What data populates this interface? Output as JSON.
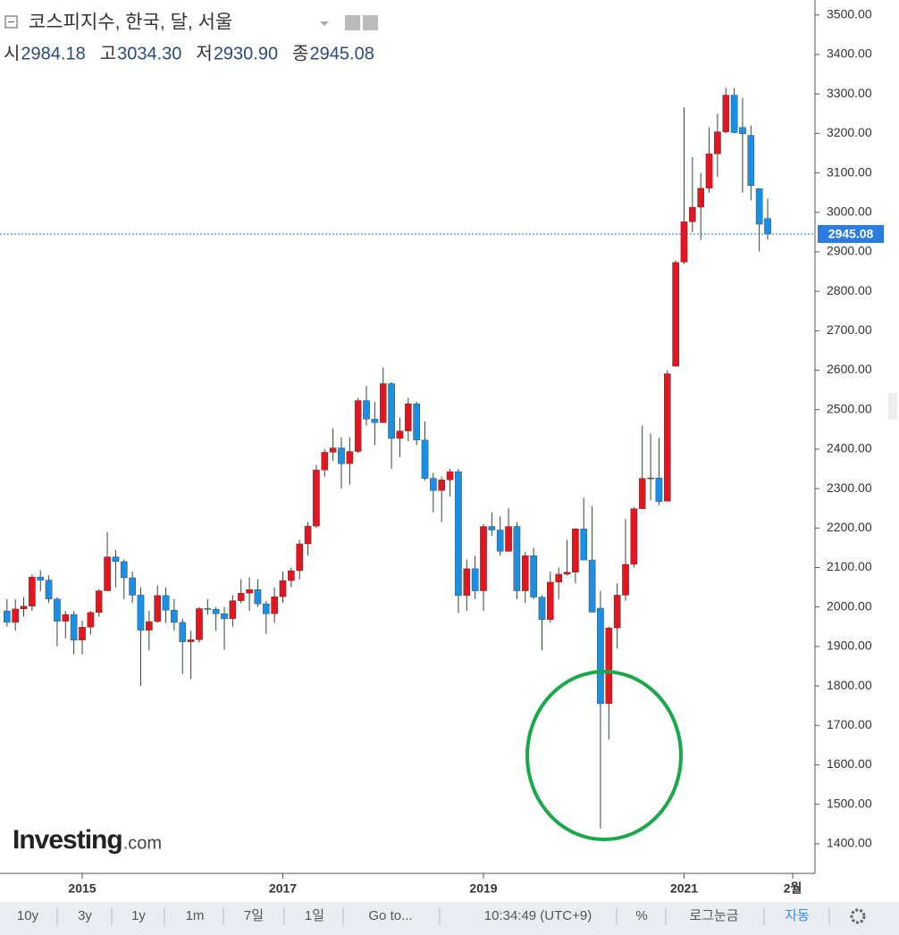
{
  "chart_data": {
    "type": "candlestick",
    "title": "코스피지수, 한국, 달, 서울",
    "header_labels": [
      "시",
      "고",
      "저",
      "종"
    ],
    "value_labels": [
      "2984.18",
      "3034.30",
      "2930.90",
      "2945.08"
    ],
    "up_color": "#e3151f",
    "down_color": "#1b8fe3",
    "x": [
      "2014-04",
      "2014-05",
      "2014-06",
      "2014-07",
      "2014-08",
      "2014-09",
      "2014-10",
      "2014-11",
      "2014-12",
      "2015-01",
      "2015-02",
      "2015-03",
      "2015-04",
      "2015-05",
      "2015-06",
      "2015-07",
      "2015-08",
      "2015-09",
      "2015-10",
      "2015-11",
      "2015-12",
      "2016-01",
      "2016-02",
      "2016-03",
      "2016-04",
      "2016-05",
      "2016-06",
      "2016-07",
      "2016-08",
      "2016-09",
      "2016-10",
      "2016-11",
      "2016-12",
      "2017-01",
      "2017-02",
      "2017-03",
      "2017-04",
      "2017-05",
      "2017-06",
      "2017-07",
      "2017-08",
      "2017-09",
      "2017-10",
      "2017-11",
      "2017-12",
      "2018-01",
      "2018-02",
      "2018-03",
      "2018-04",
      "2018-05",
      "2018-06",
      "2018-07",
      "2018-08",
      "2018-09",
      "2018-10",
      "2018-11",
      "2018-12",
      "2019-01",
      "2019-02",
      "2019-03",
      "2019-04",
      "2019-05",
      "2019-06",
      "2019-07",
      "2019-08",
      "2019-09",
      "2019-10",
      "2019-11",
      "2019-12",
      "2020-01",
      "2020-02",
      "2020-03",
      "2020-04",
      "2020-05",
      "2020-06",
      "2020-07",
      "2020-08",
      "2020-09",
      "2020-10",
      "2020-11",
      "2020-12",
      "2021-01",
      "2021-02",
      "2021-03",
      "2021-04",
      "2021-05",
      "2021-06",
      "2021-07",
      "2021-08",
      "2021-09",
      "2021-10",
      "2021-11"
    ],
    "open": [
      1990,
      1961,
      1995,
      2002,
      2076,
      2068,
      2020,
      1964,
      1981,
      1916,
      1949,
      1986,
      2041,
      2127,
      2115,
      2074,
      2030,
      1941,
      1963,
      2029,
      1992,
      1961,
      1912,
      1917,
      1996,
      1994,
      1983,
      1970,
      2016,
      2035,
      2044,
      2008,
      1983,
      2026,
      2067,
      2092,
      2160,
      2205,
      2347,
      2392,
      2403,
      2363,
      2394,
      2523,
      2476,
      2467,
      2566,
      2427,
      2446,
      2515,
      2423,
      2326,
      2295,
      2322,
      2343,
      2029,
      2097,
      2041,
      2204,
      2195,
      2141,
      2204,
      2041,
      2130,
      2025,
      1968,
      2063,
      2083,
      2088,
      2198,
      2119,
      1997,
      1755,
      1947,
      2030,
      2108,
      2249,
      2326,
      2327,
      2268,
      2610,
      2874,
      2976,
      3013,
      3061,
      3148,
      3204,
      3297,
      3215,
      3195,
      3060,
      2984.18
    ],
    "high": [
      2020,
      2020,
      2025,
      2082,
      2093,
      2080,
      2025,
      1990,
      1990,
      1965,
      1990,
      2045,
      2190,
      2145,
      2120,
      2090,
      2050,
      1990,
      2055,
      2050,
      2020,
      1970,
      1940,
      2000,
      2020,
      2000,
      2000,
      2030,
      2070,
      2075,
      2070,
      2015,
      2050,
      2090,
      2100,
      2170,
      2215,
      2360,
      2400,
      2453,
      2430,
      2430,
      2530,
      2560,
      2520,
      2607,
      2570,
      2480,
      2530,
      2520,
      2470,
      2340,
      2330,
      2350,
      2350,
      2120,
      2130,
      2210,
      2240,
      2230,
      2250,
      2215,
      2140,
      2150,
      2030,
      2090,
      2100,
      2170,
      2200,
      2277,
      2255,
      2041,
      1950,
      2060,
      2223,
      2254,
      2460,
      2440,
      2428,
      2600,
      2878,
      3266,
      3140,
      3100,
      3215,
      3250,
      3316,
      3315,
      3290,
      3220,
      3060,
      3034.3
    ],
    "low": [
      1950,
      1940,
      1975,
      1990,
      2040,
      2010,
      1900,
      1920,
      1880,
      1880,
      1930,
      1975,
      2041,
      2050,
      2020,
      2010,
      1800,
      1890,
      1960,
      1960,
      1940,
      1830,
      1817,
      1910,
      1980,
      1940,
      1892,
      1950,
      2010,
      1990,
      2000,
      1932,
      1960,
      2010,
      2050,
      2070,
      2130,
      2200,
      2330,
      2370,
      2300,
      2310,
      2390,
      2460,
      2410,
      2467,
      2350,
      2380,
      2420,
      2410,
      2320,
      2240,
      2215,
      2280,
      1985,
      1990,
      2020,
      1990,
      2180,
      2130,
      2140,
      2020,
      2010,
      2020,
      1890,
      1960,
      2020,
      2080,
      2060,
      2120,
      1987,
      1439,
      1665,
      1895,
      2016,
      2100,
      2250,
      2270,
      2258,
      2270,
      2610,
      2869,
      2950,
      2930,
      3050,
      3090,
      3200,
      3200,
      3050,
      3030,
      2901,
      2930.9
    ],
    "close": [
      1961,
      1995,
      2002,
      2076,
      2068,
      2020,
      1964,
      1981,
      1916,
      1949,
      1986,
      2041,
      2127,
      2115,
      2074,
      2030,
      1941,
      1963,
      2029,
      1992,
      1961,
      1912,
      1917,
      1996,
      1994,
      1983,
      1970,
      2016,
      2035,
      2044,
      2008,
      1983,
      2026,
      2067,
      2092,
      2160,
      2205,
      2347,
      2392,
      2403,
      2363,
      2394,
      2523,
      2476,
      2467,
      2566,
      2427,
      2446,
      2515,
      2423,
      2326,
      2295,
      2322,
      2343,
      2029,
      2097,
      2041,
      2204,
      2195,
      2141,
      2204,
      2041,
      2130,
      2025,
      1968,
      2063,
      2083,
      2088,
      2198,
      2119,
      1987,
      1755,
      1947,
      2030,
      2108,
      2249,
      2326,
      2327,
      2267,
      2591,
      2873,
      2976,
      3013,
      3061,
      3148,
      3204,
      3297,
      3202,
      3199,
      3068,
      2970,
      2945.08
    ],
    "ylim": [
      1325,
      3538
    ],
    "yticks": [
      {
        "value": 1400,
        "label": "1400.00"
      },
      {
        "value": 1500,
        "label": "1500.00"
      },
      {
        "value": 1600,
        "label": "1600.00"
      },
      {
        "value": 1700,
        "label": "1700.00"
      },
      {
        "value": 1800,
        "label": "1800.00"
      },
      {
        "value": 1900,
        "label": "1900.00"
      },
      {
        "value": 2000,
        "label": "2000.00"
      },
      {
        "value": 2100,
        "label": "2100.00"
      },
      {
        "value": 2200,
        "label": "2200.00"
      },
      {
        "value": 2300,
        "label": "2300.00"
      },
      {
        "value": 2400,
        "label": "2400.00"
      },
      {
        "value": 2500,
        "label": "2500.00"
      },
      {
        "value": 2600,
        "label": "2600.00"
      },
      {
        "value": 2700,
        "label": "2700.00"
      },
      {
        "value": 2800,
        "label": "2800.00"
      },
      {
        "value": 2900,
        "label": "2900.00"
      },
      {
        "value": 3000,
        "label": "3000.00"
      },
      {
        "value": 3100,
        "label": "3100.00"
      },
      {
        "value": 3200,
        "label": "3200.00"
      },
      {
        "value": 3300,
        "label": "3300.00"
      },
      {
        "value": 3400,
        "label": "3400.00"
      },
      {
        "value": 3500,
        "label": "3500.00"
      }
    ],
    "xticks": [
      {
        "value": "2015-01",
        "label": "2015"
      },
      {
        "value": "2017-01",
        "label": "2017"
      },
      {
        "value": "2019-01",
        "label": "2019"
      },
      {
        "value": "2021-01",
        "label": "2021"
      },
      {
        "value": "2022-02",
        "label": "2월"
      }
    ],
    "watermark": [
      "Investing",
      ".com"
    ],
    "toolbar": [
      "10y",
      "3y",
      "1y",
      "1m",
      "7일",
      "1일",
      "Go to...",
      "10:34:49 (UTC+9)",
      "%",
      "로그눈금",
      "자동"
    ]
  }
}
